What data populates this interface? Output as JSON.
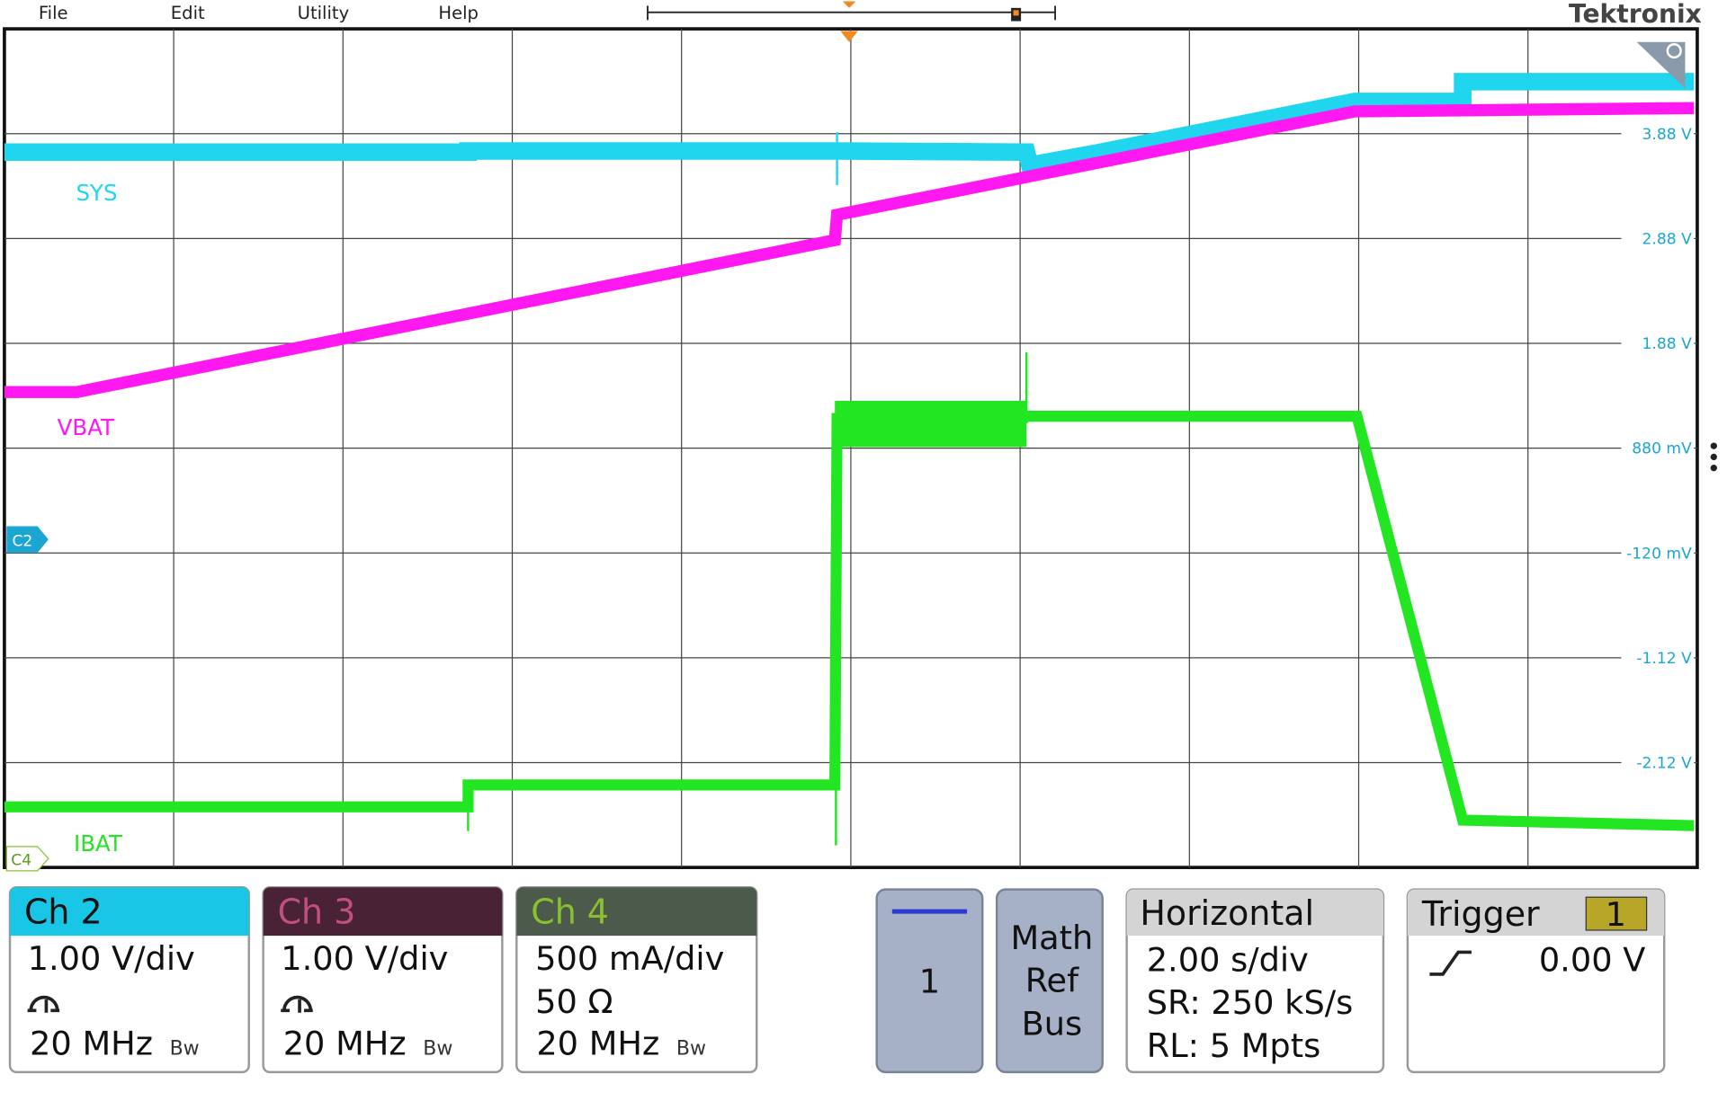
{
  "menu": [
    "File",
    "Edit",
    "Utility",
    "Help"
  ],
  "brand": "Tektronix",
  "scale_labels": [
    "3.88 V",
    "2.88 V",
    "1.88 V",
    "880 mV",
    "-120 mV",
    "-1.12 V",
    "-2.12 V"
  ],
  "trace_labels": {
    "sys": "SYS",
    "vbat": "VBAT",
    "ibat": "IBAT"
  },
  "markers": {
    "c2": "C2",
    "c4": "C4"
  },
  "channels": [
    {
      "title": "Ch 2",
      "scale": "1.00 V/div",
      "bandwidth": "20 MHz",
      "bw": "Bw"
    },
    {
      "title": "Ch 3",
      "scale": "1.00 V/div",
      "bandwidth": "20 MHz",
      "bw": "Bw"
    },
    {
      "title": "Ch 4",
      "scale": "500 mA/div",
      "termination": "50 Ω",
      "bandwidth": "20 MHz",
      "bw": "Bw"
    }
  ],
  "buttons": {
    "one": "1",
    "math": "Math",
    "ref": "Ref",
    "bus": "Bus"
  },
  "horizontal": {
    "title": "Horizontal",
    "scale": "2.00 s/div",
    "sample_rate": "SR: 250 kS/s",
    "record_length": "RL: 5 Mpts"
  },
  "trigger": {
    "title": "Trigger",
    "source": "1",
    "level": "0.00 V"
  }
}
